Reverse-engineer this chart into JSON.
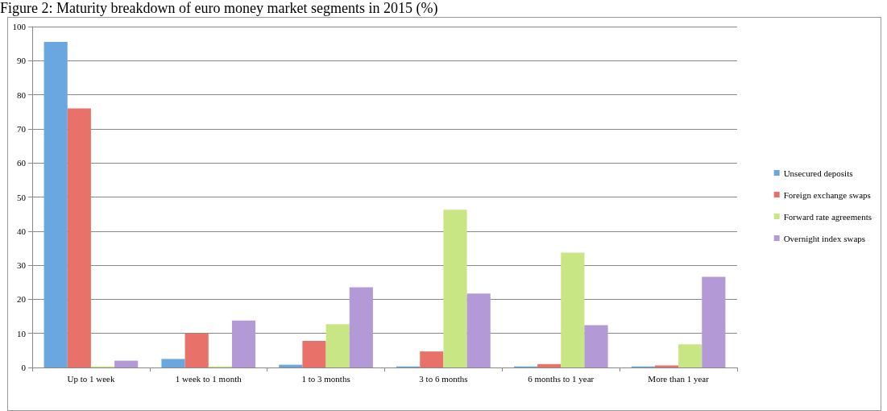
{
  "chart_data": {
    "type": "bar",
    "title": "Figure 2: Maturity breakdown of euro money market segments in 2015 (%)",
    "categories": [
      "Up to 1 week",
      "1 week to 1 month",
      "1 to 3 months",
      "3 to 6 months",
      "6 months to 1 year",
      "More than 1 year"
    ],
    "series": [
      {
        "name": "Unsecured deposits",
        "color": "#6aa6e0",
        "values": [
          95.5,
          2.5,
          0.8,
          0.3,
          0.3,
          0.3
        ]
      },
      {
        "name": "Foreign exchange swaps",
        "color": "#e8716a",
        "values": [
          76,
          10,
          7.8,
          4.7,
          1.0,
          0.6
        ]
      },
      {
        "name": "Forward rate agreements",
        "color": "#c8e684",
        "values": [
          0.3,
          0.3,
          12.7,
          46.3,
          33.7,
          6.8
        ]
      },
      {
        "name": "Overnight index swaps",
        "color": "#b39ad6",
        "values": [
          2,
          13.8,
          23.5,
          21.7,
          12.4,
          26.6
        ]
      }
    ],
    "ylim": [
      0,
      100
    ],
    "yticks": [
      0,
      10,
      20,
      30,
      40,
      50,
      60,
      70,
      80,
      90,
      100
    ],
    "grid": "y",
    "legend": "right"
  }
}
